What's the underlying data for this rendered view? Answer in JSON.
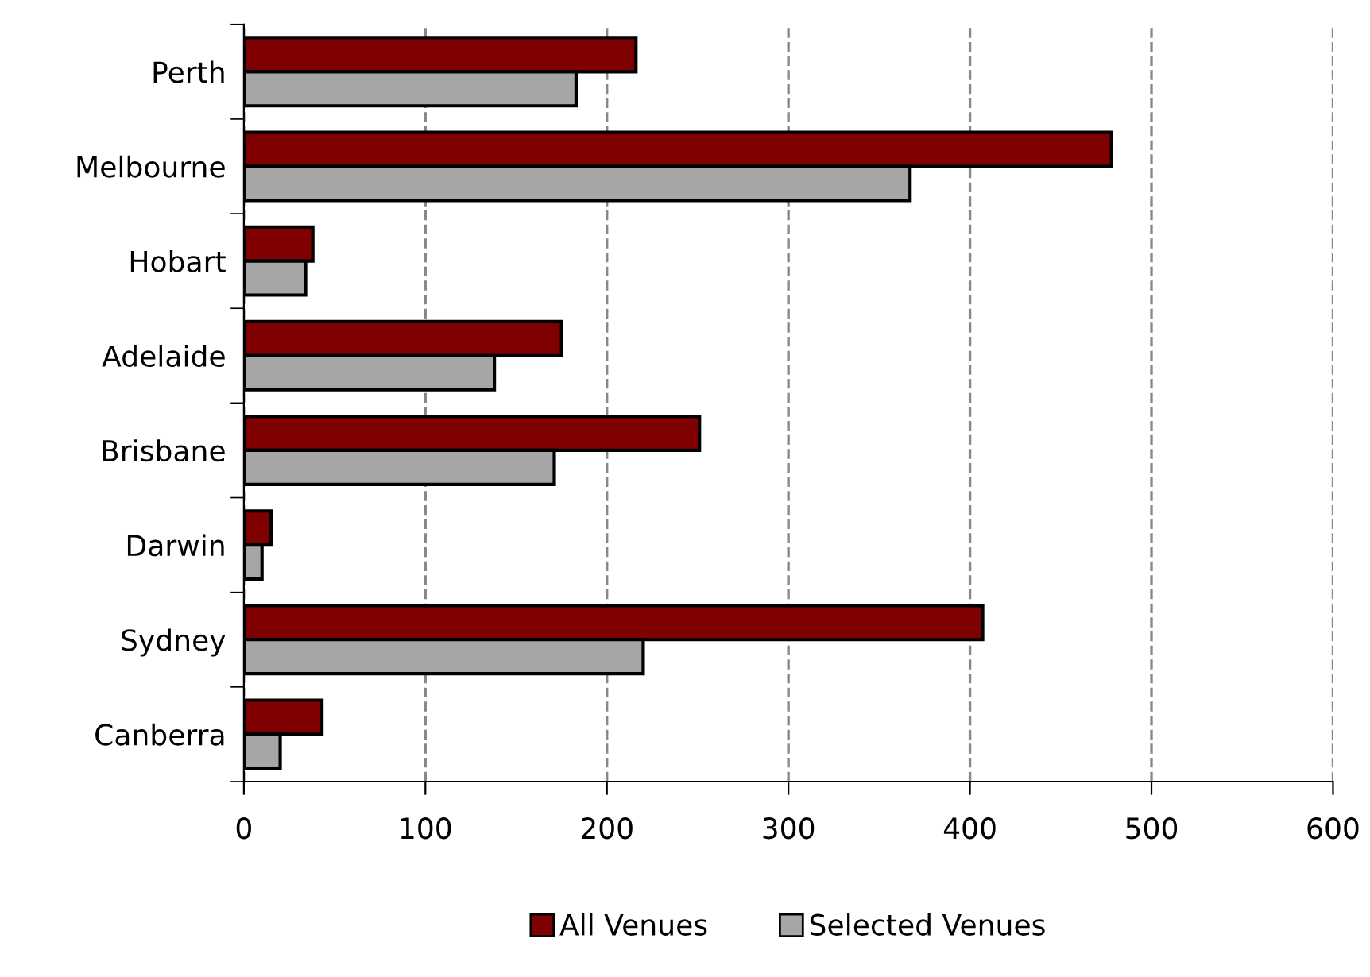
{
  "chart_data": {
    "type": "bar",
    "orientation": "horizontal",
    "categories": [
      "Perth",
      "Melbourne",
      "Hobart",
      "Adelaide",
      "Brisbane",
      "Darwin",
      "Sydney",
      "Canberra"
    ],
    "series": [
      {
        "name": "All Venues",
        "color": "#7f0000",
        "values": [
          216,
          478,
          38,
          175,
          251,
          15,
          407,
          43
        ]
      },
      {
        "name": "Selected Venues",
        "color": "#a6a6a6",
        "values": [
          183,
          367,
          34,
          138,
          171,
          10,
          220,
          20
        ]
      }
    ],
    "xlim": [
      0,
      600
    ],
    "xticks": [
      0,
      100,
      200,
      300,
      400,
      500,
      600
    ],
    "grid": "x",
    "legend": "bottom"
  }
}
